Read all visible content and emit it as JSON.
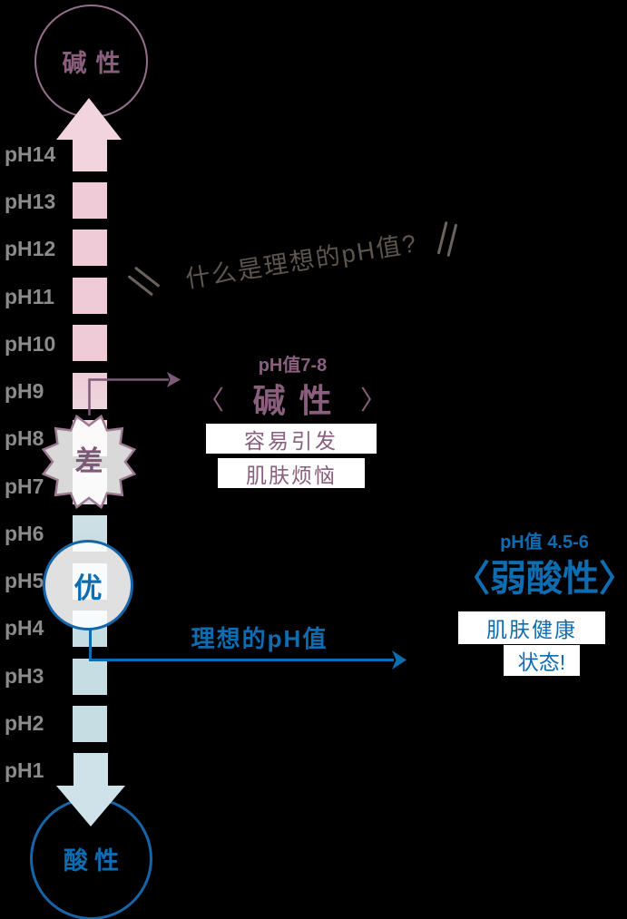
{
  "heading": {
    "text": "什么是理想的pH值?"
  },
  "scale": {
    "top_circle_label": "碱性",
    "bottom_circle_label": "酸性",
    "ph_labels": [
      "pH14",
      "pH13",
      "pH12",
      "pH11",
      "pH10",
      "pH9",
      "pH8",
      "pH7",
      "pH6",
      "pH5",
      "pH4",
      "pH3",
      "pH2",
      "pH1"
    ]
  },
  "bad": {
    "badge": "差",
    "range": "pH值7-8",
    "bracket_left": "〈",
    "name": "碱性",
    "bracket_right": "〉",
    "note_lines": [
      "容易引发",
      "肌肤烦恼"
    ]
  },
  "good": {
    "badge": "优",
    "range": "pH值 4.5-6",
    "name": "〈弱酸性〉",
    "note_lines": [
      "肌肤健康",
      "状态!"
    ],
    "arrow_label": "理想的pH值"
  },
  "colors": {
    "pink-square": "#eecbd7",
    "pink-arrow": "#f1d4de",
    "blue-square": "#c5dde3",
    "blue-arrow": "#cfe2e9",
    "purple-text": "#8a5f7d",
    "purple-line": "#7d5a78",
    "purple-stroke": "#94708c",
    "blue-text": "#0e6cb1",
    "blue-stroke": "#1565a8",
    "gray-label": "#8b8b8b",
    "title-gray": "#5e564e",
    "mark-gray": "#6b645c"
  }
}
